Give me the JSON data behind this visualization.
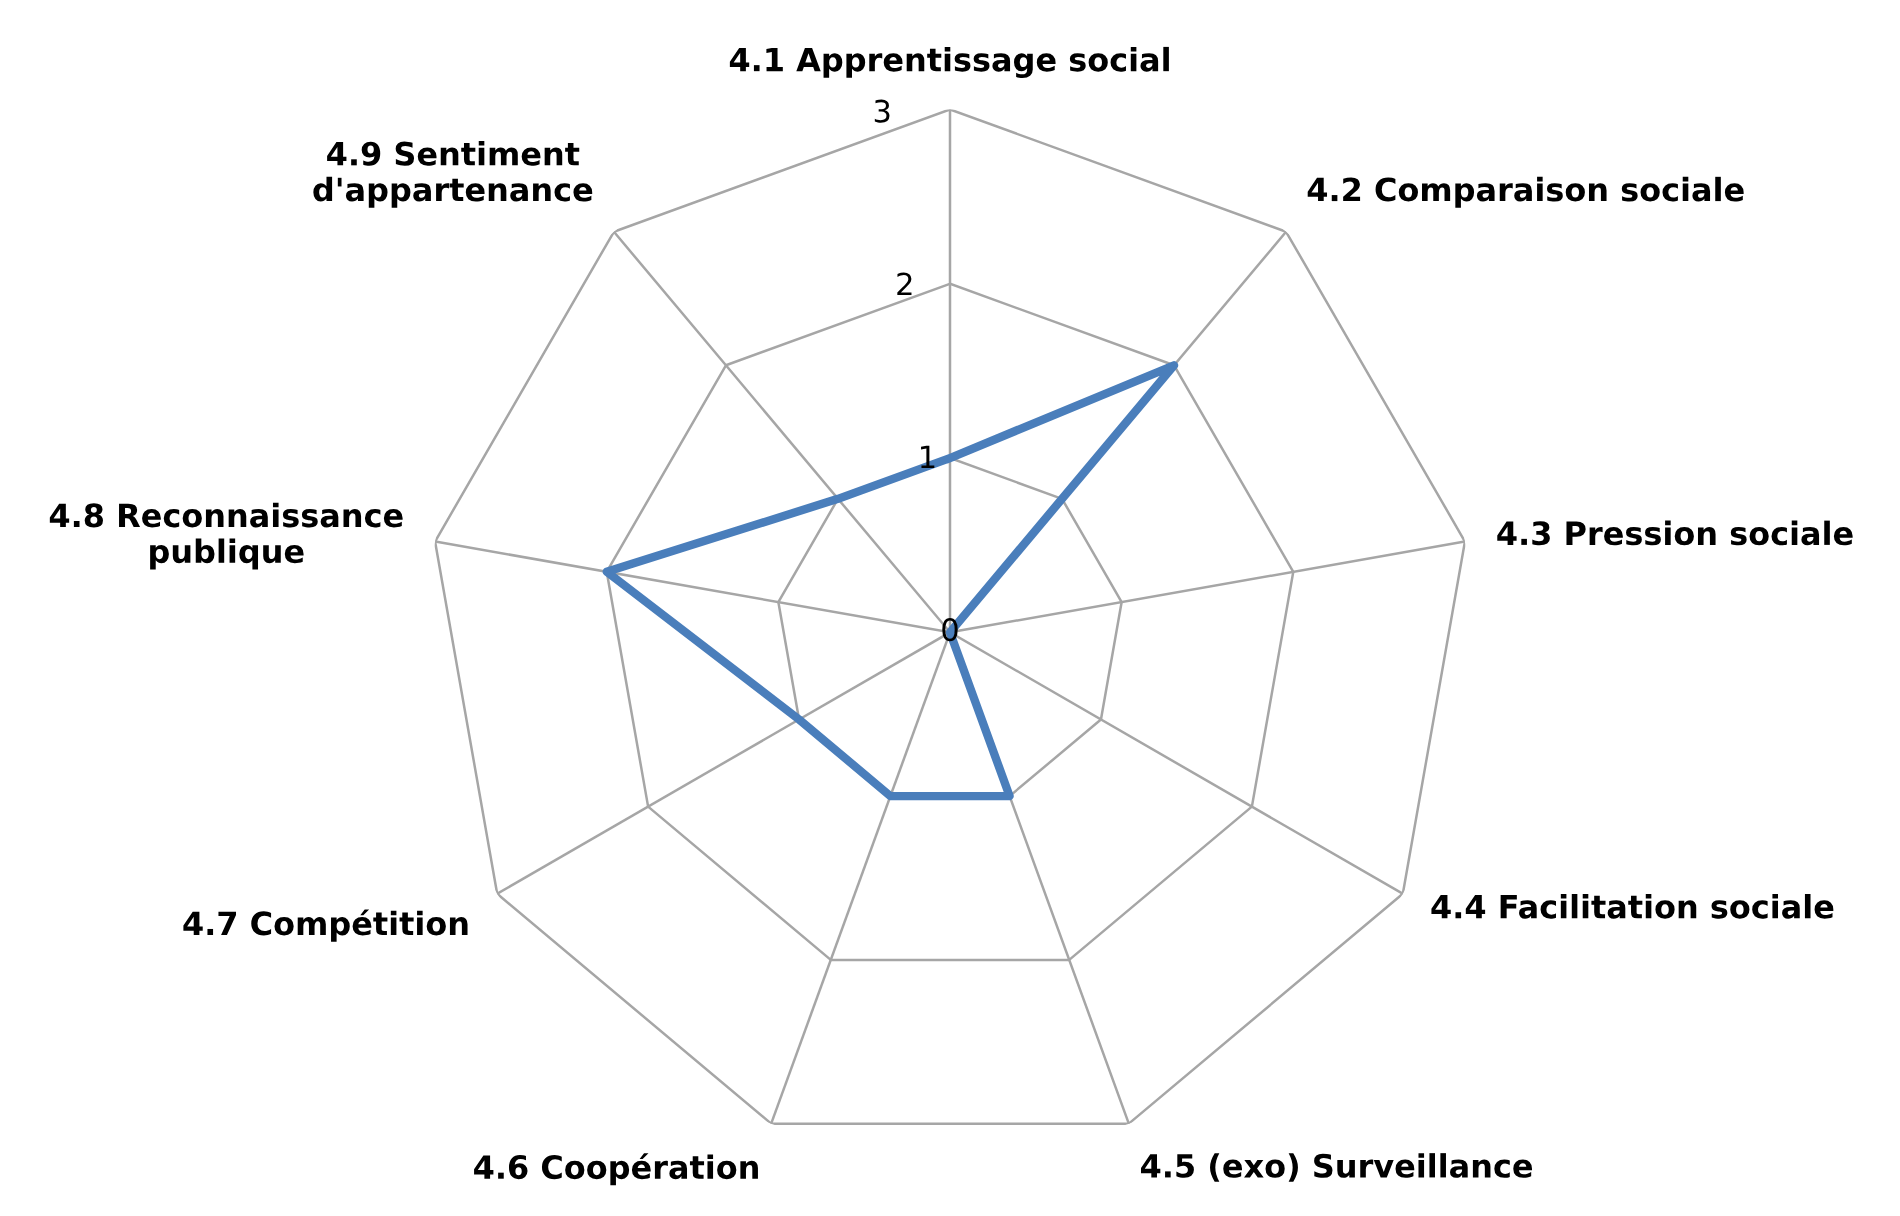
{
  "chart_data": {
    "type": "radar",
    "categories": [
      "4.1 Apprentissage social",
      "4.2 Comparaison sociale",
      "4.3 Pression sociale",
      "4.4 Facilitation sociale",
      "4.5 (exo) Surveillance",
      "4.6 Coopération",
      "4.7 Compétition",
      "4.8 Reconnaissance publique",
      "4.9 Sentiment d'appartenance"
    ],
    "series": [
      {
        "color": "#4a7ebb",
        "values": [
          1,
          2,
          0,
          0,
          1,
          1,
          1,
          2,
          1
        ]
      }
    ],
    "ylim": [
      0,
      3
    ],
    "yticks": [
      0,
      1,
      2,
      3
    ],
    "grid": true,
    "marker": "none",
    "line_style": "solid"
  }
}
